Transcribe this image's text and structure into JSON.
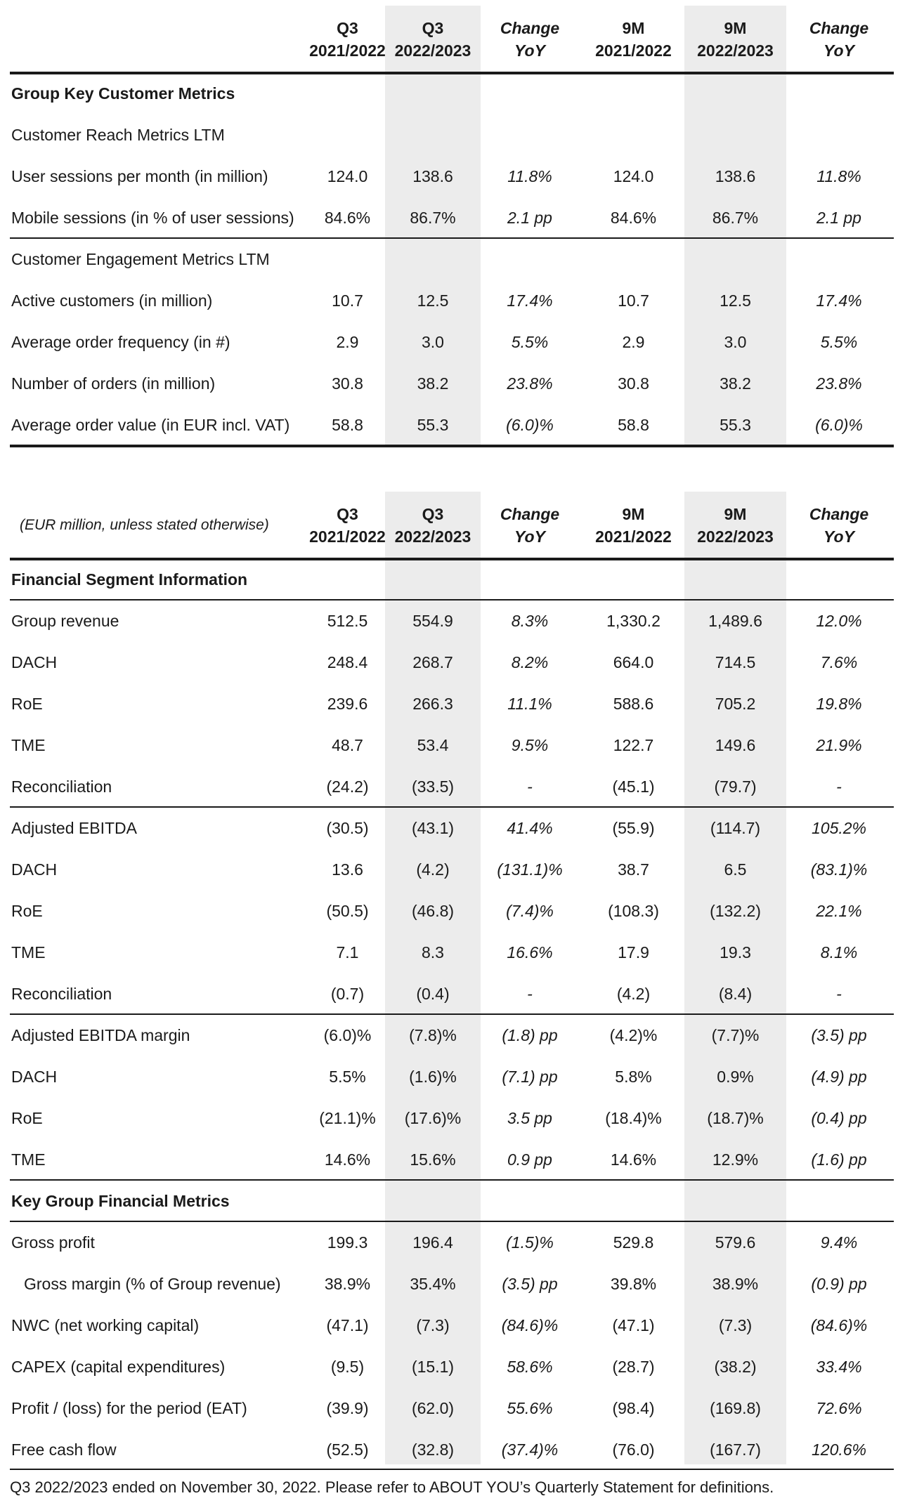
{
  "table1": {
    "header": {
      "cols": [
        {
          "l1": "Q3",
          "l2": "2021/2022",
          "italic": false
        },
        {
          "l1": "Q3",
          "l2": "2022/2023",
          "italic": false
        },
        {
          "l1": "Change",
          "l2": "YoY",
          "italic": true
        },
        {
          "l1": "9M",
          "l2": "2021/2022",
          "italic": false
        },
        {
          "l1": "9M",
          "l2": "2022/2023",
          "italic": false
        },
        {
          "l1": "Change",
          "l2": "YoY",
          "italic": true
        }
      ]
    },
    "rows": [
      {
        "label": "Group Key Customer Metrics",
        "style": "bold",
        "values": [
          "",
          "",
          "",
          "",
          "",
          ""
        ]
      },
      {
        "label": "Customer Reach Metrics LTM",
        "style": "section",
        "values": [
          "",
          "",
          "",
          "",
          "",
          ""
        ]
      },
      {
        "label": "User sessions per month (in million)",
        "values": [
          "124.0",
          "138.6",
          "11.8%",
          "124.0",
          "138.6",
          "11.8%"
        ]
      },
      {
        "label": "Mobile sessions (in % of user sessions)",
        "values": [
          "84.6%",
          "86.7%",
          "2.1 pp",
          "84.6%",
          "86.7%",
          "2.1 pp"
        ]
      },
      {
        "label": "Customer Engagement Metrics LTM",
        "style": "section",
        "values": [
          "",
          "",
          "",
          "",
          "",
          ""
        ]
      },
      {
        "label": "Active customers (in million)",
        "values": [
          "10.7",
          "12.5",
          "17.4%",
          "10.7",
          "12.5",
          "17.4%"
        ]
      },
      {
        "label": "Average order frequency (in #)",
        "values": [
          "2.9",
          "3.0",
          "5.5%",
          "2.9",
          "3.0",
          "5.5%"
        ]
      },
      {
        "label": "Number of orders (in million)",
        "values": [
          "30.8",
          "38.2",
          "23.8%",
          "30.8",
          "38.2",
          "23.8%"
        ]
      },
      {
        "label": "Average order value (in EUR incl. VAT)",
        "values": [
          "58.8",
          "55.3",
          "(6.0)%",
          "58.8",
          "55.3",
          "(6.0)%"
        ]
      }
    ]
  },
  "table2": {
    "unit_note": "(EUR million, unless stated otherwise)",
    "header": {
      "cols": [
        {
          "l1": "Q3",
          "l2": "2021/2022",
          "italic": false
        },
        {
          "l1": "Q3",
          "l2": "2022/2023",
          "italic": false
        },
        {
          "l1": "Change",
          "l2": "YoY",
          "italic": true
        },
        {
          "l1": "9M",
          "l2": "2021/2022",
          "italic": false
        },
        {
          "l1": "9M",
          "l2": "2022/2023",
          "italic": false
        },
        {
          "l1": "Change",
          "l2": "YoY",
          "italic": true
        }
      ]
    },
    "rows": [
      {
        "label": "Financial Segment Information",
        "style": "bold",
        "values": [
          "",
          "",
          "",
          "",
          "",
          ""
        ]
      },
      {
        "label": "Group revenue",
        "style": "section",
        "values": [
          "512.5",
          "554.9",
          "8.3%",
          "1,330.2",
          "1,489.6",
          "12.0%"
        ]
      },
      {
        "label": "DACH",
        "values": [
          "248.4",
          "268.7",
          "8.2%",
          "664.0",
          "714.5",
          "7.6%"
        ]
      },
      {
        "label": "RoE",
        "values": [
          "239.6",
          "266.3",
          "11.1%",
          "588.6",
          "705.2",
          "19.8%"
        ]
      },
      {
        "label": "TME",
        "values": [
          "48.7",
          "53.4",
          "9.5%",
          "122.7",
          "149.6",
          "21.9%"
        ]
      },
      {
        "label": "Reconciliation",
        "values": [
          "(24.2)",
          "(33.5)",
          "-",
          "(45.1)",
          "(79.7)",
          "-"
        ]
      },
      {
        "label": "Adjusted EBITDA",
        "style": "section",
        "values": [
          "(30.5)",
          "(43.1)",
          "41.4%",
          "(55.9)",
          "(114.7)",
          "105.2%"
        ]
      },
      {
        "label": "DACH",
        "values": [
          "13.6",
          "(4.2)",
          "(131.1)%",
          "38.7",
          "6.5",
          "(83.1)%"
        ]
      },
      {
        "label": "RoE",
        "values": [
          "(50.5)",
          "(46.8)",
          "(7.4)%",
          "(108.3)",
          "(132.2)",
          "22.1%"
        ]
      },
      {
        "label": "TME",
        "values": [
          "7.1",
          "8.3",
          "16.6%",
          "17.9",
          "19.3",
          "8.1%"
        ]
      },
      {
        "label": "Reconciliation",
        "values": [
          "(0.7)",
          "(0.4)",
          "-",
          "(4.2)",
          "(8.4)",
          "-"
        ]
      },
      {
        "label": "Adjusted EBITDA margin",
        "style": "section",
        "values": [
          "(6.0)%",
          "(7.8)%",
          "(1.8) pp",
          "(4.2)%",
          "(7.7)%",
          "(3.5) pp"
        ]
      },
      {
        "label": "DACH",
        "values": [
          "5.5%",
          "(1.6)%",
          "(7.1) pp",
          "5.8%",
          "0.9%",
          "(4.9) pp"
        ]
      },
      {
        "label": "RoE",
        "values": [
          "(21.1)%",
          "(17.6)%",
          "3.5 pp",
          "(18.4)%",
          "(18.7)%",
          "(0.4) pp"
        ]
      },
      {
        "label": "TME",
        "values": [
          "14.6%",
          "15.6%",
          "0.9 pp",
          "14.6%",
          "12.9%",
          "(1.6) pp"
        ]
      },
      {
        "label": "Key Group Financial Metrics",
        "style": "bold",
        "values": [
          "",
          "",
          "",
          "",
          "",
          ""
        ]
      },
      {
        "label": "Gross profit",
        "values": [
          "199.3",
          "196.4",
          "(1.5)%",
          "529.8",
          "579.6",
          "9.4%"
        ]
      },
      {
        "label": "Gross margin (% of Group revenue)",
        "style": "indent",
        "values": [
          "38.9%",
          "35.4%",
          "(3.5) pp",
          "39.8%",
          "38.9%",
          "(0.9) pp"
        ]
      },
      {
        "label": "NWC (net working capital)",
        "values": [
          "(47.1)",
          "(7.3)",
          "(84.6)%",
          "(47.1)",
          "(7.3)",
          "(84.6)%"
        ]
      },
      {
        "label": "CAPEX (capital expenditures)",
        "values": [
          "(9.5)",
          "(15.1)",
          "58.6%",
          "(28.7)",
          "(38.2)",
          "33.4%"
        ]
      },
      {
        "label": "Profit / (loss) for the period (EAT)",
        "values": [
          "(39.9)",
          "(62.0)",
          "55.6%",
          "(98.4)",
          "(169.8)",
          "72.6%"
        ]
      },
      {
        "label": "Free cash flow",
        "values": [
          "(52.5)",
          "(32.8)",
          "(37.4)%",
          "(76.0)",
          "(167.7)",
          "120.6%"
        ]
      }
    ]
  },
  "footnote": "Q3 2022/2023 ended on November 30, 2022. Please refer to ABOUT YOU’s Quarterly Statement for definitions."
}
